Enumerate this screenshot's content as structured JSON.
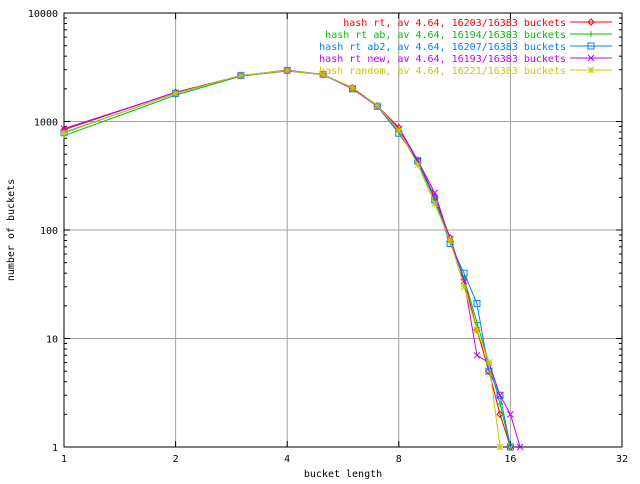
{
  "chart_data": {
    "type": "line",
    "title": "",
    "xlabel": "bucket length",
    "ylabel": "number of buckets",
    "xscale": "log2",
    "yscale": "log10",
    "xlim": [
      1,
      32
    ],
    "ylim": [
      1,
      10000
    ],
    "x_ticks": [
      1,
      2,
      4,
      8,
      16,
      32
    ],
    "x_tick_labels": [
      "1",
      "2",
      "4",
      "8",
      "16",
      "32"
    ],
    "y_ticks": [
      1,
      10,
      100,
      1000,
      10000
    ],
    "y_tick_labels": [
      "1",
      "10",
      "100",
      "1000",
      "10000"
    ],
    "grid": true,
    "legend_position": "top-right",
    "series": [
      {
        "name": "hash rt, av 4.64, 16203/16383 buckets",
        "color": "#ff0000",
        "marker": "diamond",
        "x": [
          1,
          2,
          3,
          4,
          5,
          6,
          7,
          8,
          9,
          10,
          11,
          12,
          13,
          14,
          15,
          16
        ],
        "y": [
          840,
          1860,
          2640,
          2930,
          2700,
          2050,
          1400,
          880,
          440,
          200,
          85,
          35,
          12,
          5,
          2,
          1
        ]
      },
      {
        "name": "hash rt ab, av 4.64, 16194/16383 buckets",
        "color": "#00c000",
        "marker": "plus",
        "x": [
          1,
          2,
          3,
          4,
          5,
          6,
          7,
          8,
          9,
          10,
          11,
          12,
          13,
          14,
          15,
          16
        ],
        "y": [
          740,
          1750,
          2620,
          2920,
          2710,
          2050,
          1410,
          810,
          420,
          190,
          82,
          36,
          14,
          6,
          2.5,
          1
        ]
      },
      {
        "name": "hash rt ab2, av 4.64, 16207/16383 buckets",
        "color": "#0080ff",
        "marker": "square",
        "x": [
          1,
          2,
          3,
          4,
          5,
          6,
          7,
          8,
          9,
          10,
          11,
          12,
          13,
          14,
          15,
          16
        ],
        "y": [
          790,
          1810,
          2660,
          2960,
          2720,
          2000,
          1380,
          780,
          430,
          190,
          75,
          40,
          21,
          5,
          3,
          1
        ]
      },
      {
        "name": "hash rt new, av 4.64, 16193/16383 buckets",
        "color": "#c000ff",
        "marker": "x",
        "x": [
          1,
          2,
          3,
          4,
          5,
          6,
          7,
          8,
          9,
          10,
          11,
          12,
          13,
          14,
          15,
          16,
          17
        ],
        "y": [
          860,
          1850,
          2630,
          2980,
          2690,
          2000,
          1390,
          850,
          440,
          220,
          82,
          34,
          7,
          6,
          3,
          2,
          1
        ]
      },
      {
        "name": "hash random, av 4.64, 16221/16383 buckets",
        "color": "#c8c800",
        "marker": "star",
        "x": [
          1,
          2,
          3,
          4,
          5,
          6,
          7,
          8,
          9,
          10,
          11,
          12,
          13,
          14,
          15
        ],
        "y": [
          780,
          1820,
          2650,
          2950,
          2700,
          2040,
          1400,
          830,
          400,
          175,
          80,
          30,
          12,
          6,
          1
        ]
      }
    ]
  }
}
